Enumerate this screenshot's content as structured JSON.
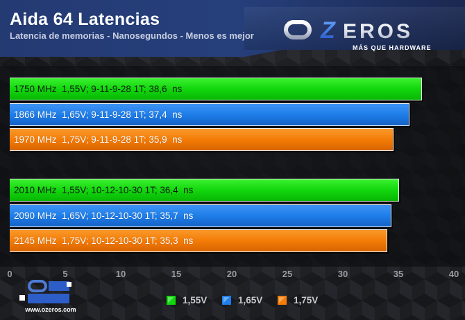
{
  "header": {
    "title": "Aida 64 Latencias",
    "subtitle": "Latencia de memorias - Nanosegundos - Menos es mejor",
    "logo_text": "OZEROS",
    "logo_tagline": "MÁS QUE HARDWARE",
    "watermark_url": "www.ozeros.com"
  },
  "chart_data": {
    "type": "bar",
    "orientation": "horizontal",
    "title": "Aida 64 Latencias",
    "subtitle": "Latencia de memorias - Nanosegundos - Menos es mejor",
    "xlim": [
      0,
      40
    ],
    "x_ticks": [
      "0",
      "5",
      "10",
      "15",
      "20",
      "25",
      "30",
      "35",
      "40"
    ],
    "groups": [
      {
        "bars": [
          {
            "label": "1750 MHz  1,55V; 9-11-9-28 1T; 38,6  ns",
            "value": 38.6,
            "series": "1,55V"
          },
          {
            "label": "1866 MHz  1,65V; 9-11-9-28 1T; 37,4  ns",
            "value": 37.4,
            "series": "1,65V"
          },
          {
            "label": "1970 MHz  1,75V; 9-11-9-28 1T; 35,9  ns",
            "value": 35.9,
            "series": "1,75V"
          }
        ]
      },
      {
        "bars": [
          {
            "label": "2010 MHz  1,55V; 10-12-10-30 1T; 36,4  ns",
            "value": 36.4,
            "series": "1,55V"
          },
          {
            "label": "2090 MHz  1,65V; 10-12-10-30 1T; 35,7  ns",
            "value": 35.7,
            "series": "1,65V"
          },
          {
            "label": "2145 MHz  1,75V; 10-12-10-30 1T; 35,3  ns",
            "value": 35.3,
            "series": "1,75V"
          }
        ]
      }
    ],
    "legend": {
      "placement": "bottom",
      "items": [
        {
          "name": "1,55V",
          "color": "#12d70d"
        },
        {
          "name": "1,65V",
          "color": "#1f7ee9"
        },
        {
          "name": "1,75V",
          "color": "#f47c07"
        }
      ]
    },
    "grid": false
  },
  "colors": {
    "banner": "#26407c",
    "background": "#1d1e22",
    "green": "#12d70d",
    "blue": "#1f7ee9",
    "orange": "#f47c07",
    "tick_text": "#9a9ca3"
  }
}
